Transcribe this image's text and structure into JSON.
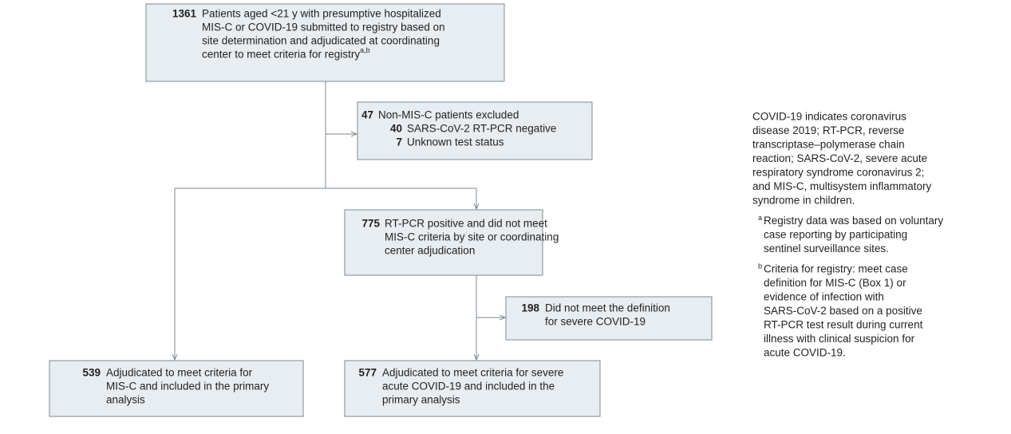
{
  "boxes": [
    {
      "count": "1361",
      "lines": [
        "Patients aged <21 y with presumptive hospitalized",
        "MIS-C or COVID-19 submitted to registry based on",
        "site determination and adjudicated at coordinating",
        "center to meet criteria for registry"
      ],
      "superscript": "a,b"
    },
    {
      "count": "47",
      "lines": [
        "Non-MIS-C patients excluded"
      ],
      "sublines": [
        {
          "count": "40",
          "text": "SARS-CoV-2 RT-PCR negative"
        },
        {
          "count": "7",
          "text": "Unknown test status"
        }
      ]
    },
    {
      "count": "775",
      "lines": [
        "RT-PCR positive and did not meet",
        "MIS-C criteria by site or coordinating",
        "center adjudication"
      ]
    },
    {
      "count": "198",
      "lines": [
        "Did not meet the definition",
        "for severe COVID-19"
      ]
    },
    {
      "count": "539",
      "lines": [
        "Adjudicated to meet criteria for",
        "MIS-C and included in the primary",
        "analysis"
      ]
    },
    {
      "count": "577",
      "lines": [
        "Adjudicated to meet criteria for severe",
        "acute COVID-19 and included in the",
        "primary analysis"
      ]
    }
  ],
  "notes": {
    "abbreviations": [
      "COVID-19 indicates coronavirus",
      "disease 2019; RT-PCR, reverse",
      "transcriptase–polymerase chain",
      "reaction; SARS-CoV-2, severe acute",
      "respiratory syndrome coronavirus 2;",
      "and MIS-C, multisystem inflammatory",
      "syndrome in children."
    ],
    "footnotes": [
      {
        "mark": "a",
        "lines": [
          "Registry data was based on voluntary",
          "case reporting by participating",
          "sentinel surveillance sites."
        ]
      },
      {
        "mark": "b",
        "lines": [
          "Criteria for registry: meet case",
          "definition for MIS-C (Box 1) or",
          "evidence of infection with",
          "SARS-CoV-2 based on a positive",
          "RT-PCR test result during current",
          "illness with clinical suspicion for",
          "acute COVID-19."
        ]
      }
    ]
  }
}
